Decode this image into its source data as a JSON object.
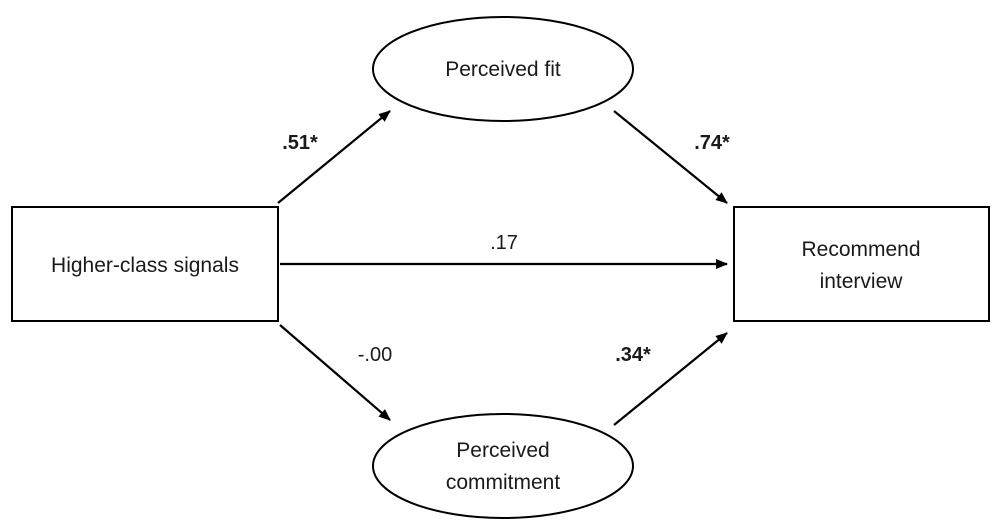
{
  "nodes": {
    "higher_class": {
      "label": "Higher-class signals"
    },
    "perceived_fit": {
      "label": "Perceived fit"
    },
    "perceived_commitment": {
      "label_line1": "Perceived",
      "label_line2": "commitment"
    },
    "recommend_interview": {
      "label_line1": "Recommend",
      "label_line2": "interview"
    }
  },
  "edges": {
    "higher_to_fit": {
      "coefficient": ".51*",
      "significant": true
    },
    "fit_to_recommend": {
      "coefficient": ".74*",
      "significant": true
    },
    "higher_to_recommend": {
      "coefficient": ".17",
      "significant": false
    },
    "higher_to_commitment": {
      "coefficient": "-.00",
      "significant": false
    },
    "commitment_to_recommend": {
      "coefficient": ".34*",
      "significant": true
    }
  },
  "colors": {
    "stroke": "#000000",
    "text": "#1a1a1a",
    "background": "#ffffff"
  }
}
